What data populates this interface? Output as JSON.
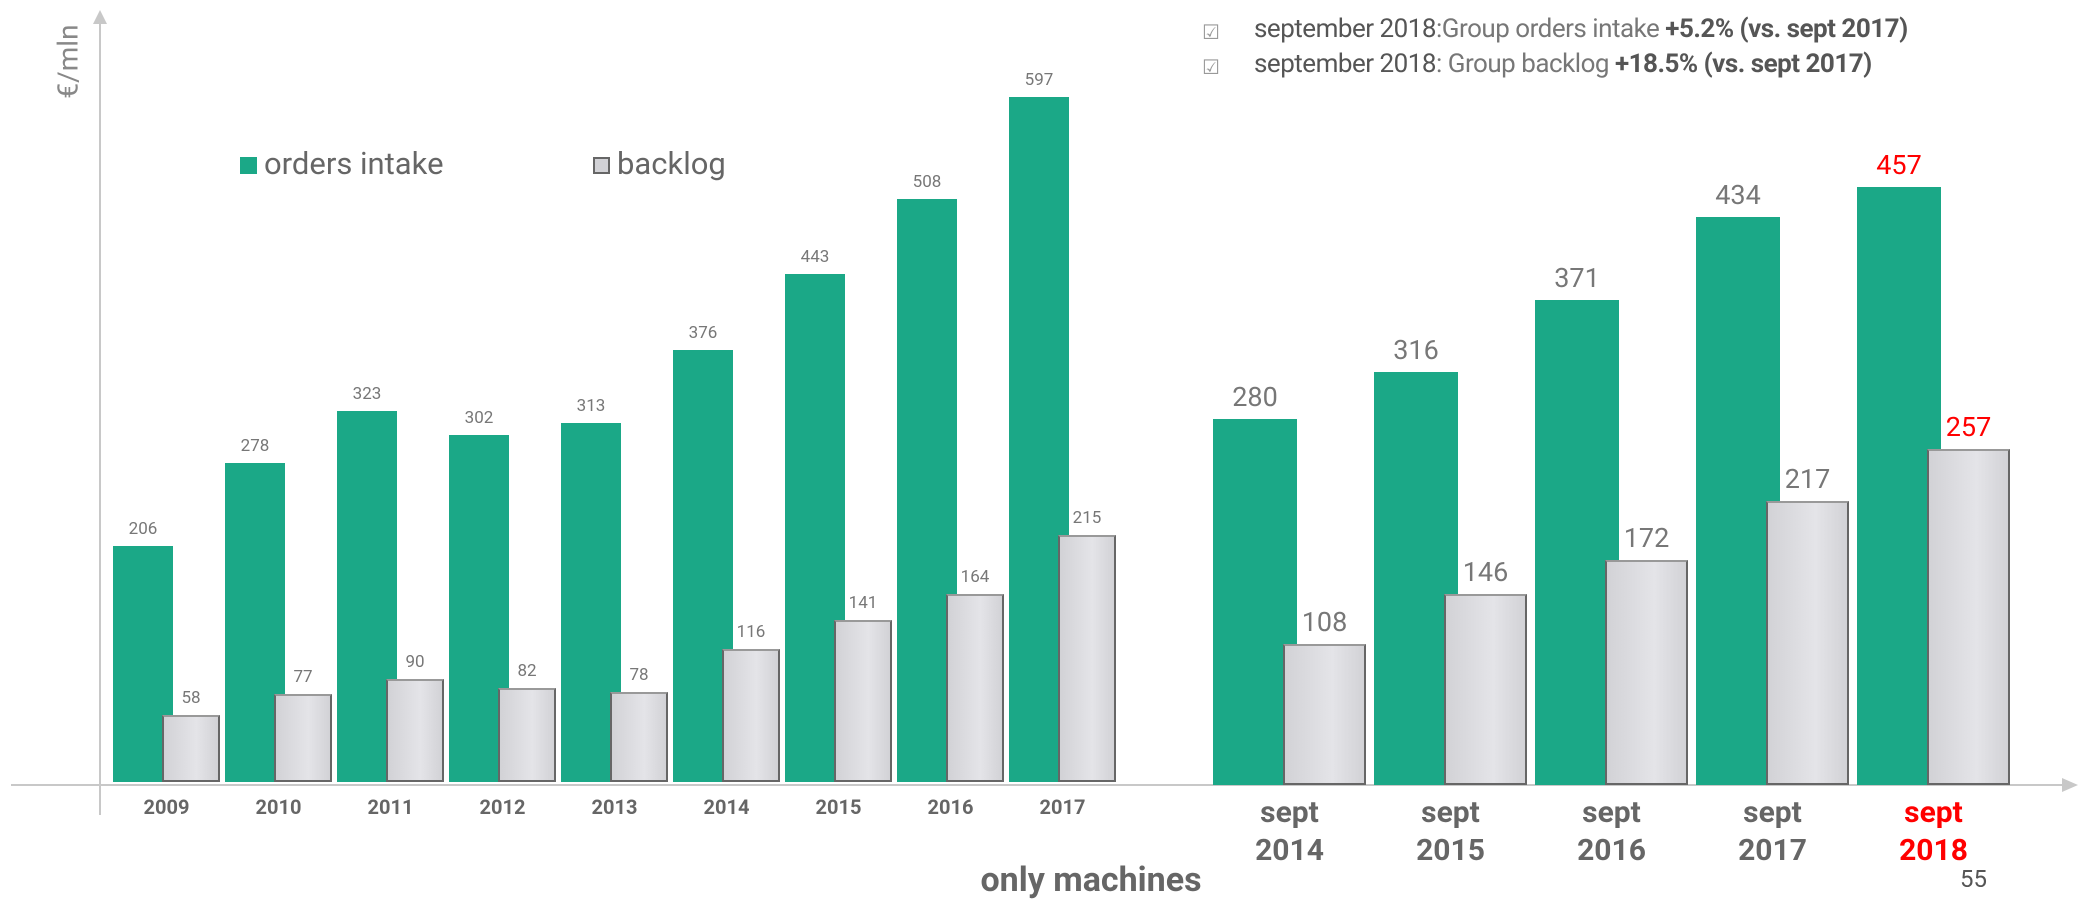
{
  "chart_data": [
    {
      "type": "bar",
      "y_label": "€/mln",
      "legend": true,
      "categories": [
        "2009",
        "2010",
        "2011",
        "2012",
        "2013",
        "2014",
        "2015",
        "2016",
        "2017"
      ],
      "series": [
        {
          "name": "orders intake",
          "color": "#1ba887",
          "values": [
            206,
            278,
            323,
            302,
            313,
            376,
            443,
            508,
            597
          ]
        },
        {
          "name": "backlog",
          "color": "#d2d2d6",
          "values": [
            58,
            77,
            90,
            82,
            78,
            116,
            141,
            164,
            215
          ]
        }
      ],
      "ylim": [
        0,
        670
      ]
    },
    {
      "type": "bar",
      "categories": [
        "sept 2014",
        "sept 2015",
        "sept 2016",
        "sept 2017",
        "sept 2018"
      ],
      "category_label_colors": [
        "#666666",
        "#666666",
        "#666666",
        "#666666",
        "#ff0000"
      ],
      "series": [
        {
          "color": "#1ba887",
          "values": [
            280,
            316,
            371,
            434,
            457
          ]
        },
        {
          "color": "#d2d2d6",
          "values": [
            108,
            146,
            172,
            217,
            257
          ]
        }
      ],
      "ylim": [
        0,
        590
      ]
    }
  ],
  "notes": [
    {
      "date": "september 2018",
      "text": ":Group orders intake ",
      "bold": "+5.2% (vs. sept 2017)"
    },
    {
      "date": "september 2018",
      "text": ": Group backlog ",
      "bold": "+18.5% (vs. sept 2017)"
    }
  ],
  "footer": "only machines",
  "page_number": "55"
}
